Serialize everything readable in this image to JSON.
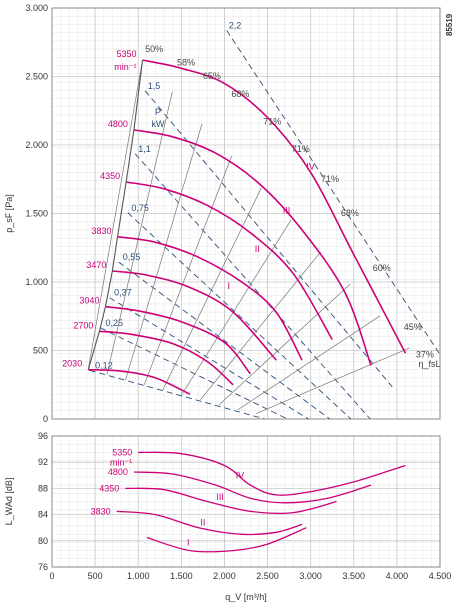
{
  "figure_id": "85519",
  "colors": {
    "speed": "#cc0077",
    "power": "#2a4f7a",
    "grid": "#c8c8c8",
    "efficiency": "#555555",
    "dashed": "#2a4f7a"
  },
  "chart_data": [
    {
      "type": "line",
      "xlabel": "",
      "ylabel": "p_sF [Pa]",
      "xlim": [
        0,
        4500
      ],
      "ylim": [
        0,
        3000
      ],
      "x_ticks": [
        0,
        500,
        1000,
        1500,
        2000,
        2500,
        3000,
        3500,
        4000,
        4500
      ],
      "y_ticks": [
        0,
        500,
        1000,
        1500,
        2000,
        2500,
        3000
      ],
      "y_tick_labels": [
        "0",
        "500",
        "1.000",
        "1.500",
        "2.000",
        "2.500",
        "3.000"
      ],
      "grid": true,
      "speed_unit": "min⁻¹",
      "power_label": [
        "P",
        "kW"
      ],
      "efficiency_label": "η_fsL",
      "series": [
        {
          "name": "5350",
          "x": [
            1050,
            1500,
            2000,
            2500,
            3000,
            3500,
            4100
          ],
          "y": [
            2620,
            2560,
            2450,
            2200,
            1800,
            1200,
            480
          ]
        },
        {
          "name": "4800",
          "x": [
            950,
            1400,
            1900,
            2400,
            2900,
            3400,
            3700
          ],
          "y": [
            2110,
            2060,
            1940,
            1720,
            1380,
            920,
            390
          ]
        },
        {
          "name": "4350",
          "x": [
            860,
            1300,
            1800,
            2300,
            2800,
            3250
          ],
          "y": [
            1730,
            1680,
            1560,
            1360,
            1060,
            580
          ]
        },
        {
          "name": "3830",
          "x": [
            760,
            1200,
            1700,
            2200,
            2600,
            2900
          ],
          "y": [
            1330,
            1290,
            1180,
            1000,
            780,
            430
          ]
        },
        {
          "name": "3470",
          "x": [
            700,
            1100,
            1600,
            2100,
            2600
          ],
          "y": [
            1080,
            1050,
            960,
            780,
            430
          ]
        },
        {
          "name": "3040",
          "x": [
            620,
            1000,
            1500,
            2000,
            2300
          ],
          "y": [
            820,
            790,
            710,
            560,
            330
          ]
        },
        {
          "name": "2700",
          "x": [
            550,
            900,
            1400,
            1800,
            2100
          ],
          "y": [
            640,
            620,
            550,
            420,
            250
          ]
        },
        {
          "name": "2030",
          "x": [
            420,
            800,
            1200,
            1600
          ],
          "y": [
            360,
            350,
            300,
            180
          ]
        }
      ],
      "system_curves": [
        {
          "name": "I",
          "label_x": 2050,
          "label_y": 950
        },
        {
          "name": "II",
          "label_x": 2380,
          "label_y": 1220
        },
        {
          "name": "III",
          "label_x": 2720,
          "label_y": 1500
        },
        {
          "name": "IV",
          "label_x": 3000,
          "label_y": 1820
        }
      ],
      "power_lines": [
        {
          "name": "2,2",
          "label_x": 2050,
          "label_y": 2850
        },
        {
          "name": "1,5",
          "label_x": 1110,
          "label_y": 2410
        },
        {
          "name": "1,1",
          "label_x": 1000,
          "label_y": 1950
        },
        {
          "name": "0,75",
          "label_x": 920,
          "label_y": 1520
        },
        {
          "name": "0,55",
          "label_x": 820,
          "label_y": 1160
        },
        {
          "name": "0,37",
          "label_x": 720,
          "label_y": 900
        },
        {
          "name": "0,25",
          "label_x": 620,
          "label_y": 680
        },
        {
          "name": "0,12",
          "label_x": 500,
          "label_y": 370
        }
      ],
      "efficiency_labels": [
        {
          "name": "50%",
          "x": 1080,
          "y": 2680
        },
        {
          "name": "58%",
          "x": 1450,
          "y": 2580
        },
        {
          "name": "65%",
          "x": 1750,
          "y": 2480
        },
        {
          "name": "68%",
          "x": 2080,
          "y": 2350
        },
        {
          "name": "71%",
          "x": 2450,
          "y": 2150
        },
        {
          "name": "71%",
          "x": 2780,
          "y": 1950
        },
        {
          "name": "71%",
          "x": 3120,
          "y": 1730
        },
        {
          "name": "68%",
          "x": 3350,
          "y": 1480
        },
        {
          "name": "60%",
          "x": 3720,
          "y": 1080
        },
        {
          "name": "45%",
          "x": 4080,
          "y": 650
        },
        {
          "name": "37%",
          "x": 4220,
          "y": 450
        }
      ]
    },
    {
      "type": "line",
      "xlabel": "q_V [m³/h]",
      "ylabel": "L_WAd [dB]",
      "xlim": [
        0,
        4500
      ],
      "ylim": [
        76,
        96
      ],
      "x_ticks": [
        0,
        500,
        1000,
        1500,
        2000,
        2500,
        3000,
        3500,
        4000,
        4500
      ],
      "x_tick_labels": [
        "0",
        "500",
        "1.000",
        "1.500",
        "2.000",
        "2.500",
        "3.000",
        "3.500",
        "4.000",
        "4.500"
      ],
      "y_ticks": [
        76,
        80,
        84,
        88,
        92,
        96
      ],
      "grid": true,
      "speed_unit": "min⁻¹",
      "series": [
        {
          "name": "5350",
          "x": [
            1000,
            1500,
            2000,
            2300,
            2600,
            3000,
            3500,
            4100
          ],
          "y": [
            93.5,
            93.3,
            91.5,
            88.5,
            87.0,
            87.5,
            89.0,
            91.5
          ]
        },
        {
          "name": "4800",
          "x": [
            950,
            1400,
            1900,
            2300,
            2700,
            3200,
            3700
          ],
          "y": [
            90.5,
            90.2,
            88.5,
            86.5,
            85.8,
            86.5,
            88.5
          ]
        },
        {
          "name": "4350",
          "x": [
            850,
            1300,
            1800,
            2300,
            2800,
            3300
          ],
          "y": [
            88.0,
            87.8,
            86.0,
            84.5,
            84.3,
            86.0
          ]
        },
        {
          "name": "3830",
          "x": [
            750,
            1200,
            1700,
            2200,
            2600,
            2900
          ],
          "y": [
            84.5,
            84.0,
            82.0,
            81.0,
            81.3,
            82.5
          ]
        },
        {
          "name": "",
          "x": [
            1100,
            1600,
            2100,
            2500,
            2950
          ],
          "y": [
            80.5,
            78.5,
            78.5,
            79.5,
            82.0
          ]
        }
      ],
      "curve_labels": [
        {
          "name": "IV",
          "x": 2180,
          "y": 89.5
        },
        {
          "name": "III",
          "x": 1950,
          "y": 86.2
        },
        {
          "name": "II",
          "x": 1750,
          "y": 82.3
        },
        {
          "name": "I",
          "x": 1580,
          "y": 79.3
        }
      ]
    }
  ]
}
